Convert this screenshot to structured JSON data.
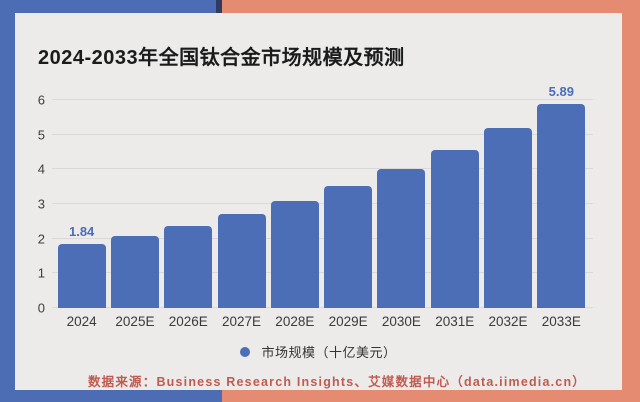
{
  "colors": {
    "bg_left": "#4C6CB3",
    "bg_right": "#E58B71",
    "bg_accent": "#2F3B60",
    "card_bg": "#ECEBEA",
    "gridline": "#D9D9D9",
    "bar": "#4B6EB6",
    "value_label": "#4A6DB7",
    "footer_text": "#C05B50",
    "title_text": "#1B1B1B"
  },
  "title": "2024-2033年全国钛合金市场规模及预测",
  "chart_data": {
    "type": "bar",
    "categories": [
      "2024",
      "2025E",
      "2026E",
      "2027E",
      "2028E",
      "2029E",
      "2030E",
      "2031E",
      "2032E",
      "2033E"
    ],
    "values": [
      1.84,
      2.09,
      2.38,
      2.71,
      3.09,
      3.51,
      4.0,
      4.55,
      5.18,
      5.89
    ],
    "value_labels": [
      {
        "index": 0,
        "text": "1.84"
      },
      {
        "index": 9,
        "text": "5.89"
      }
    ],
    "title": "2024-2033年全国钛合金市场规模及预测",
    "xlabel": "",
    "ylabel": "",
    "yticks": [
      0,
      1,
      2,
      3,
      4,
      5,
      6
    ],
    "ylim": [
      0,
      6
    ],
    "grid": true,
    "legend": {
      "label": "市场规模（十亿美元）",
      "position": "bottom-center"
    }
  },
  "footer": {
    "source_text": "数据来源：Business Research Insights、艾媒数据中心（data.iimedia.cn）"
  }
}
